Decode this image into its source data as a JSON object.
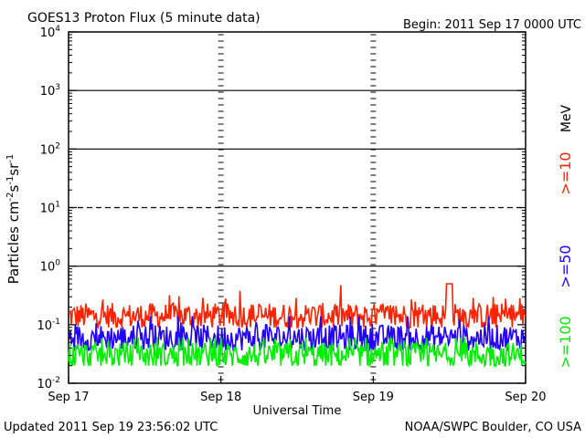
{
  "header": {
    "title": "GOES13 Proton Flux (5 minute data)",
    "begin": "Begin: 2011 Sep 17 0000 UTC"
  },
  "footer": {
    "updated": "Updated 2011 Sep 19 23:56:02 UTC",
    "credit": "NOAA/SWPC Boulder, CO USA"
  },
  "chart_data": {
    "type": "line",
    "title": "GOES13 Proton Flux (5 minute data)",
    "xlabel": "Universal Time",
    "ylabel": "Particles cm⁻²s⁻¹sr⁻¹",
    "yscale": "log",
    "ylim": [
      0.01,
      10000
    ],
    "xlim": [
      "2011-09-17",
      "2011-09-20"
    ],
    "x_ticks": [
      "Sep 17",
      "Sep 18",
      "Sep 19",
      "Sep 20"
    ],
    "y_ticks": [
      {
        "value": 0.01,
        "mantissa": "10",
        "exp": "-2"
      },
      {
        "value": 0.1,
        "mantissa": "10",
        "exp": "-1"
      },
      {
        "value": 1,
        "mantissa": "10",
        "exp": "0"
      },
      {
        "value": 10,
        "mantissa": "10",
        "exp": "1"
      },
      {
        "value": 100,
        "mantissa": "10",
        "exp": "2"
      },
      {
        "value": 1000,
        "mantissa": "10",
        "exp": "3"
      },
      {
        "value": 10000,
        "mantissa": "10",
        "exp": "4"
      }
    ],
    "threshold_lines": [
      {
        "value": 10,
        "style": "dashed"
      },
      {
        "value": 1,
        "style": "solid"
      },
      {
        "value": 100,
        "style": "solid"
      },
      {
        "value": 1000,
        "style": "solid"
      }
    ],
    "legend_unit": "MeV",
    "series": [
      {
        "name": ">=10",
        "color": "#ff2200",
        "baseline": 0.14,
        "min": 0.09,
        "max": 0.5,
        "peak": {
          "x": 2.5,
          "y": 0.5
        }
      },
      {
        "name": ">=50",
        "color": "#2200ff",
        "baseline": 0.06,
        "min": 0.035,
        "max": 0.14
      },
      {
        "name": ">=100",
        "color": "#00ee00",
        "baseline": 0.03,
        "min": 0.02,
        "max": 0.06
      }
    ],
    "grid": false,
    "legend": "right"
  }
}
